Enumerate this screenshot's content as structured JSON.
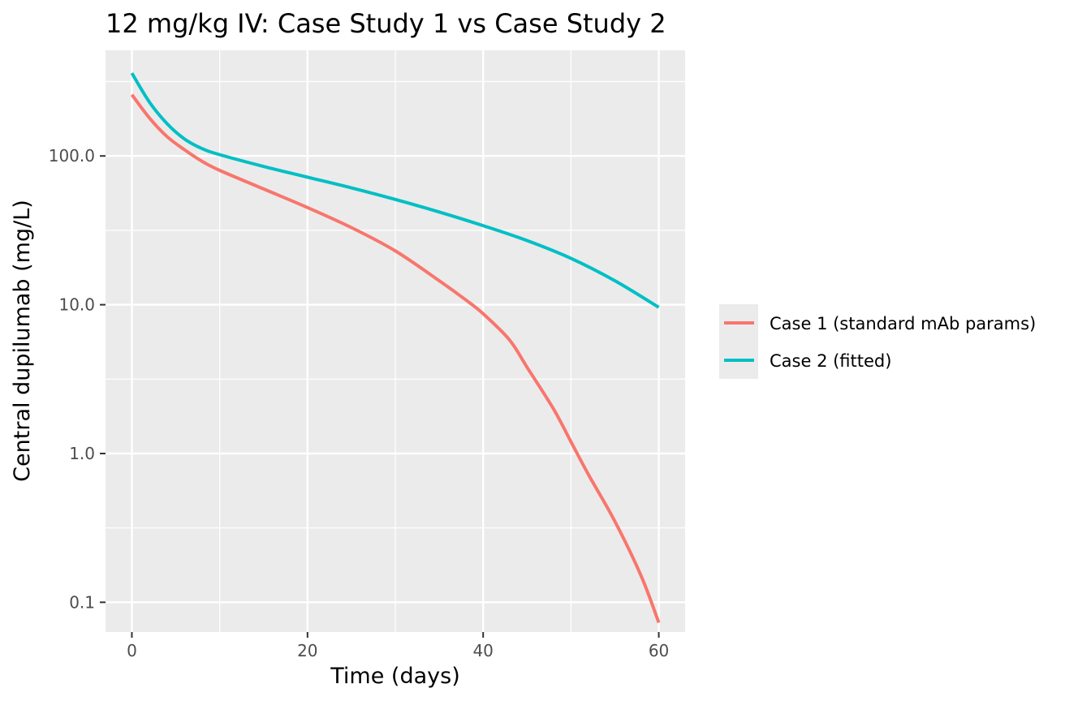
{
  "chart_data": {
    "type": "line",
    "title": "12 mg/kg IV: Case Study 1 vs Case Study 2",
    "xlabel": "Time (days)",
    "ylabel": "Central dupilumab (mg/L)",
    "x_scale": "linear",
    "y_scale": "log10",
    "xlim": [
      -3,
      63
    ],
    "ylim": [
      0.0631,
      513
    ],
    "x_ticks": [
      0,
      20,
      40,
      60
    ],
    "x_tick_labels": [
      "0",
      "20",
      "40",
      "60"
    ],
    "y_ticks": [
      0.1,
      1,
      10,
      100
    ],
    "y_tick_labels": [
      "0.1",
      "1.0",
      "10.0",
      "100.0"
    ],
    "grid": true,
    "legend_position": "right",
    "series": [
      {
        "name": "Case 1 (standard mAb params)",
        "color": "#F8766D",
        "x": [
          0,
          2,
          4,
          6,
          8,
          10,
          15,
          20,
          25,
          30,
          35,
          38,
          40,
          43,
          45,
          48,
          50,
          52,
          55,
          58,
          60
        ],
        "y": [
          258,
          180,
          135,
          110,
          92,
          80,
          60,
          45,
          33,
          23,
          14.5,
          10.8,
          8.7,
          5.8,
          3.8,
          2.0,
          1.2,
          0.72,
          0.35,
          0.15,
          0.073
        ]
      },
      {
        "name": "Case 2 (fitted)",
        "color": "#00BFC4",
        "x": [
          0,
          2,
          4,
          6,
          8,
          10,
          15,
          20,
          25,
          30,
          35,
          40,
          45,
          50,
          55,
          60
        ],
        "y": [
          360,
          230,
          165,
          130,
          112,
          102,
          85,
          72,
          61,
          51,
          42,
          34,
          27,
          20.5,
          14.5,
          9.6
        ]
      }
    ]
  }
}
